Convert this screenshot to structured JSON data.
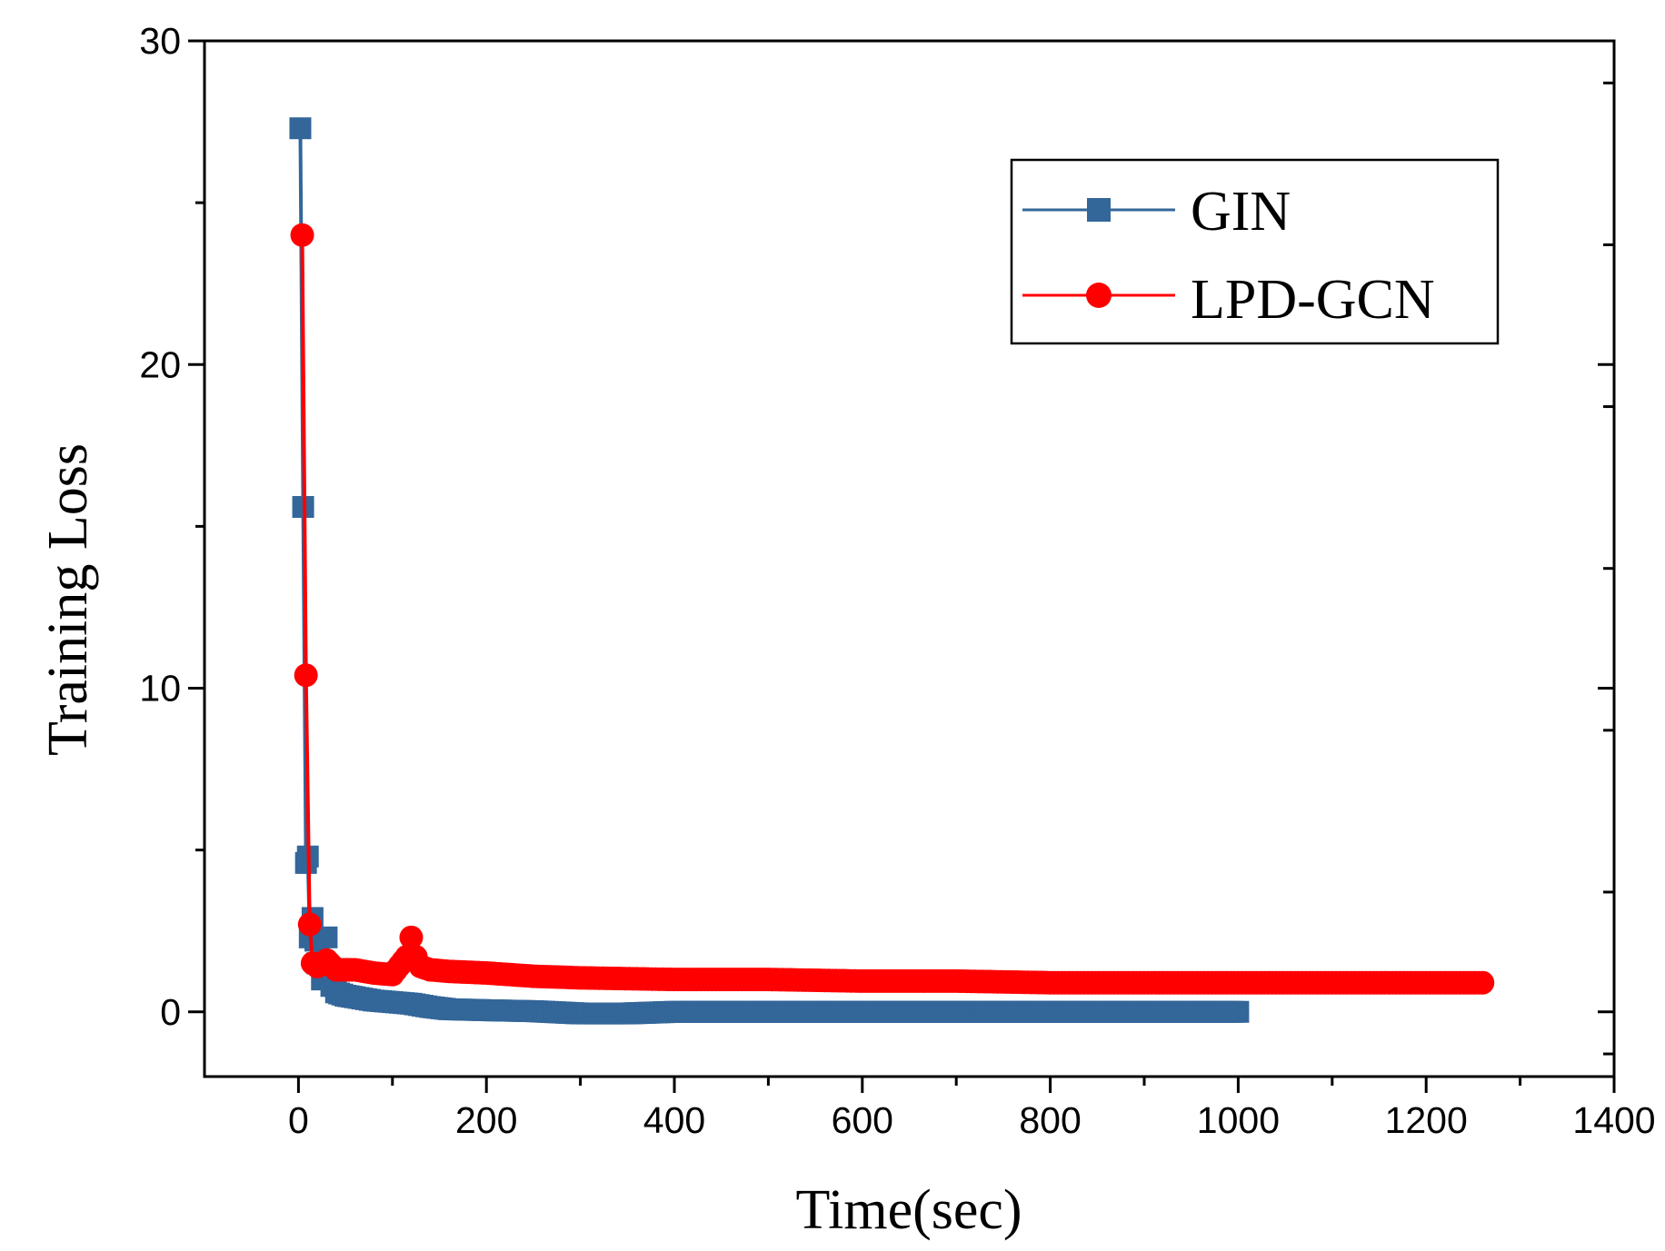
{
  "chart_data": {
    "type": "line",
    "title": "",
    "xlabel": "Time(sec)",
    "ylabel": "Training Loss",
    "xlim": [
      -100,
      1400
    ],
    "ylim": [
      -2,
      30
    ],
    "xticks": [
      0,
      200,
      400,
      600,
      800,
      1000,
      1200,
      1400
    ],
    "yticks": [
      0,
      10,
      20,
      30
    ],
    "legend_position": "top-right",
    "series": [
      {
        "name": "GIN",
        "color": "#336699",
        "marker": "square",
        "x": [
          2,
          5,
          8,
          10,
          12,
          15,
          18,
          20,
          25,
          30,
          35,
          40,
          50,
          60,
          80,
          100,
          120,
          140,
          160,
          200,
          250,
          300,
          350,
          400,
          500,
          600,
          700,
          800,
          900,
          1000
        ],
        "y": [
          27.3,
          15.6,
          4.6,
          4.8,
          2.3,
          2.9,
          2.2,
          1.5,
          1.0,
          2.3,
          0.8,
          0.6,
          0.5,
          0.45,
          0.35,
          0.3,
          0.25,
          0.15,
          0.08,
          0.05,
          0.02,
          -0.05,
          -0.05,
          0.0,
          0.0,
          0.0,
          0.0,
          0.0,
          0.0,
          0.0
        ]
      },
      {
        "name": "LPD-GCN",
        "color": "#ff0000",
        "marker": "circle",
        "x": [
          4,
          8,
          12,
          15,
          20,
          25,
          30,
          40,
          50,
          60,
          80,
          100,
          115,
          120,
          125,
          130,
          140,
          160,
          200,
          250,
          300,
          400,
          500,
          600,
          700,
          800,
          900,
          1000,
          1100,
          1200,
          1260
        ],
        "y": [
          24.0,
          10.4,
          2.7,
          1.5,
          1.4,
          1.5,
          1.6,
          1.3,
          1.3,
          1.3,
          1.2,
          1.15,
          1.7,
          2.3,
          1.7,
          1.4,
          1.3,
          1.25,
          1.2,
          1.1,
          1.05,
          1.0,
          1.0,
          0.95,
          0.95,
          0.9,
          0.9,
          0.9,
          0.9,
          0.9,
          0.9
        ]
      }
    ]
  }
}
